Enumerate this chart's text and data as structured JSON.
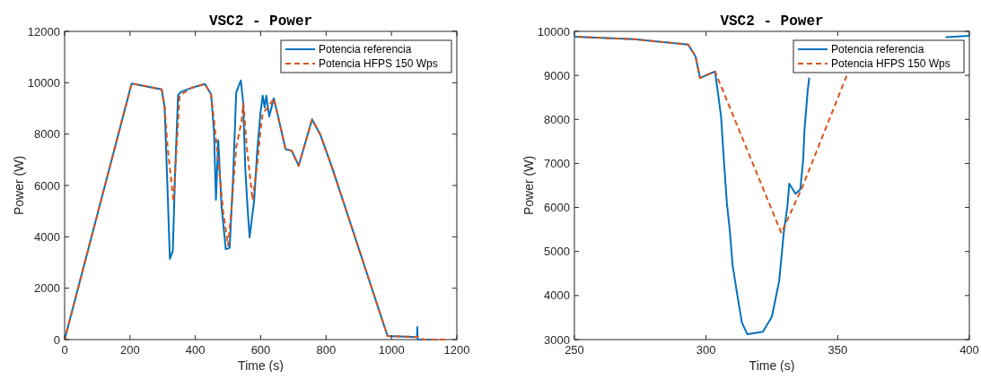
{
  "chart_data": [
    {
      "type": "line",
      "title": "VSC2 - Power",
      "xlabel": "Time (s)",
      "ylabel": "Power (W)",
      "xlim": [
        0,
        1200
      ],
      "ylim": [
        0,
        12000
      ],
      "xticks": [
        0,
        200,
        400,
        600,
        800,
        1000,
        1200
      ],
      "yticks": [
        0,
        2000,
        4000,
        6000,
        8000,
        10000,
        12000
      ],
      "legend": "top right",
      "series": [
        {
          "name": "Potencia referencia",
          "color": "#0072bd",
          "line_style": "solid",
          "x": [
            0,
            205,
            297,
            306,
            315,
            322,
            331,
            338,
            347,
            355,
            388,
            429,
            448,
            457,
            463,
            470,
            480,
            493,
            505,
            516,
            525,
            539,
            546,
            553,
            560,
            566,
            580,
            589,
            599,
            606,
            612,
            617,
            626,
            640,
            653,
            676,
            695,
            716,
            757,
            782,
            818,
            988,
            1078,
            1079,
            1080,
            1081,
            1139
          ],
          "values": [
            0,
            9970,
            9740,
            9040,
            5790,
            3140,
            3450,
            6490,
            9500,
            9640,
            9800,
            9950,
            9560,
            8110,
            5440,
            7760,
            5200,
            3520,
            3570,
            6490,
            9620,
            10090,
            9270,
            6600,
            5080,
            3980,
            5430,
            7290,
            8800,
            9500,
            9040,
            9500,
            8690,
            9390,
            8690,
            7410,
            7350,
            6770,
            8570,
            7990,
            6710,
            140,
            100,
            490,
            100,
            0,
            0
          ]
        },
        {
          "name": "Potencia HFPS 150 Wps",
          "color": "#d95319",
          "line_style": "dashed",
          "x": [
            0,
            205,
            297,
            306,
            315,
            333,
            345,
            352,
            388,
            429,
            448,
            453,
            470,
            485,
            500,
            510,
            525,
            541,
            547,
            557,
            575,
            590,
            599,
            606,
            626,
            640,
            653,
            676,
            695,
            716,
            757,
            782,
            818,
            988,
            1079,
            1100,
            1164
          ],
          "values": [
            0,
            9970,
            9740,
            9040,
            7500,
            5370,
            8000,
            9500,
            9800,
            9950,
            9560,
            9000,
            7000,
            5000,
            3660,
            5000,
            7500,
            8470,
            9200,
            7540,
            5430,
            6900,
            8110,
            8800,
            9110,
            9390,
            8690,
            7410,
            7350,
            6770,
            8570,
            7990,
            6710,
            140,
            100,
            0,
            0
          ]
        }
      ]
    },
    {
      "type": "line",
      "title": "VSC2 - Power",
      "xlabel": "Time (s)",
      "ylabel": "Power (W)",
      "xlim": [
        250,
        400
      ],
      "ylim": [
        3000,
        10000
      ],
      "xticks": [
        250,
        300,
        350,
        400
      ],
      "yticks": [
        3000,
        4000,
        5000,
        6000,
        7000,
        8000,
        9000,
        10000
      ],
      "legend": "top right",
      "series": [
        {
          "name": "Potencia referencia",
          "color": "#0072bd",
          "line_style": "solid",
          "x": [
            250,
            272.7,
            293.2,
            296,
            297.7,
            303.4,
            304.5,
            305.7,
            306.8,
            307.9,
            309,
            310.1,
            311.9,
            313.6,
            315.7,
            321.6,
            325,
            327.8,
            329.5,
            330.9,
            331.6,
            334,
            335.8,
            336.9,
            337.4,
            338.6,
            339.2,
            365,
            391,
            400
          ],
          "values": [
            9880,
            9820,
            9700,
            9430,
            8940,
            9090,
            8610,
            8070,
            7050,
            6100,
            5490,
            4680,
            4000,
            3390,
            3120,
            3180,
            3520,
            4340,
            5420,
            6030,
            6540,
            6310,
            6410,
            7090,
            7770,
            8650,
            8950,
            null,
            9870,
            9900
          ]
        },
        {
          "name": "Potencia HFPS 150 Wps",
          "color": "#d95319",
          "line_style": "dashed",
          "x": [
            250,
            272.7,
            293.2,
            296,
            297.7,
            303.4,
            328.6,
            336.4,
            353.4
          ],
          "values": [
            9880,
            9820,
            9700,
            9430,
            8940,
            9090,
            5420,
            6440,
            8990
          ]
        }
      ]
    }
  ]
}
